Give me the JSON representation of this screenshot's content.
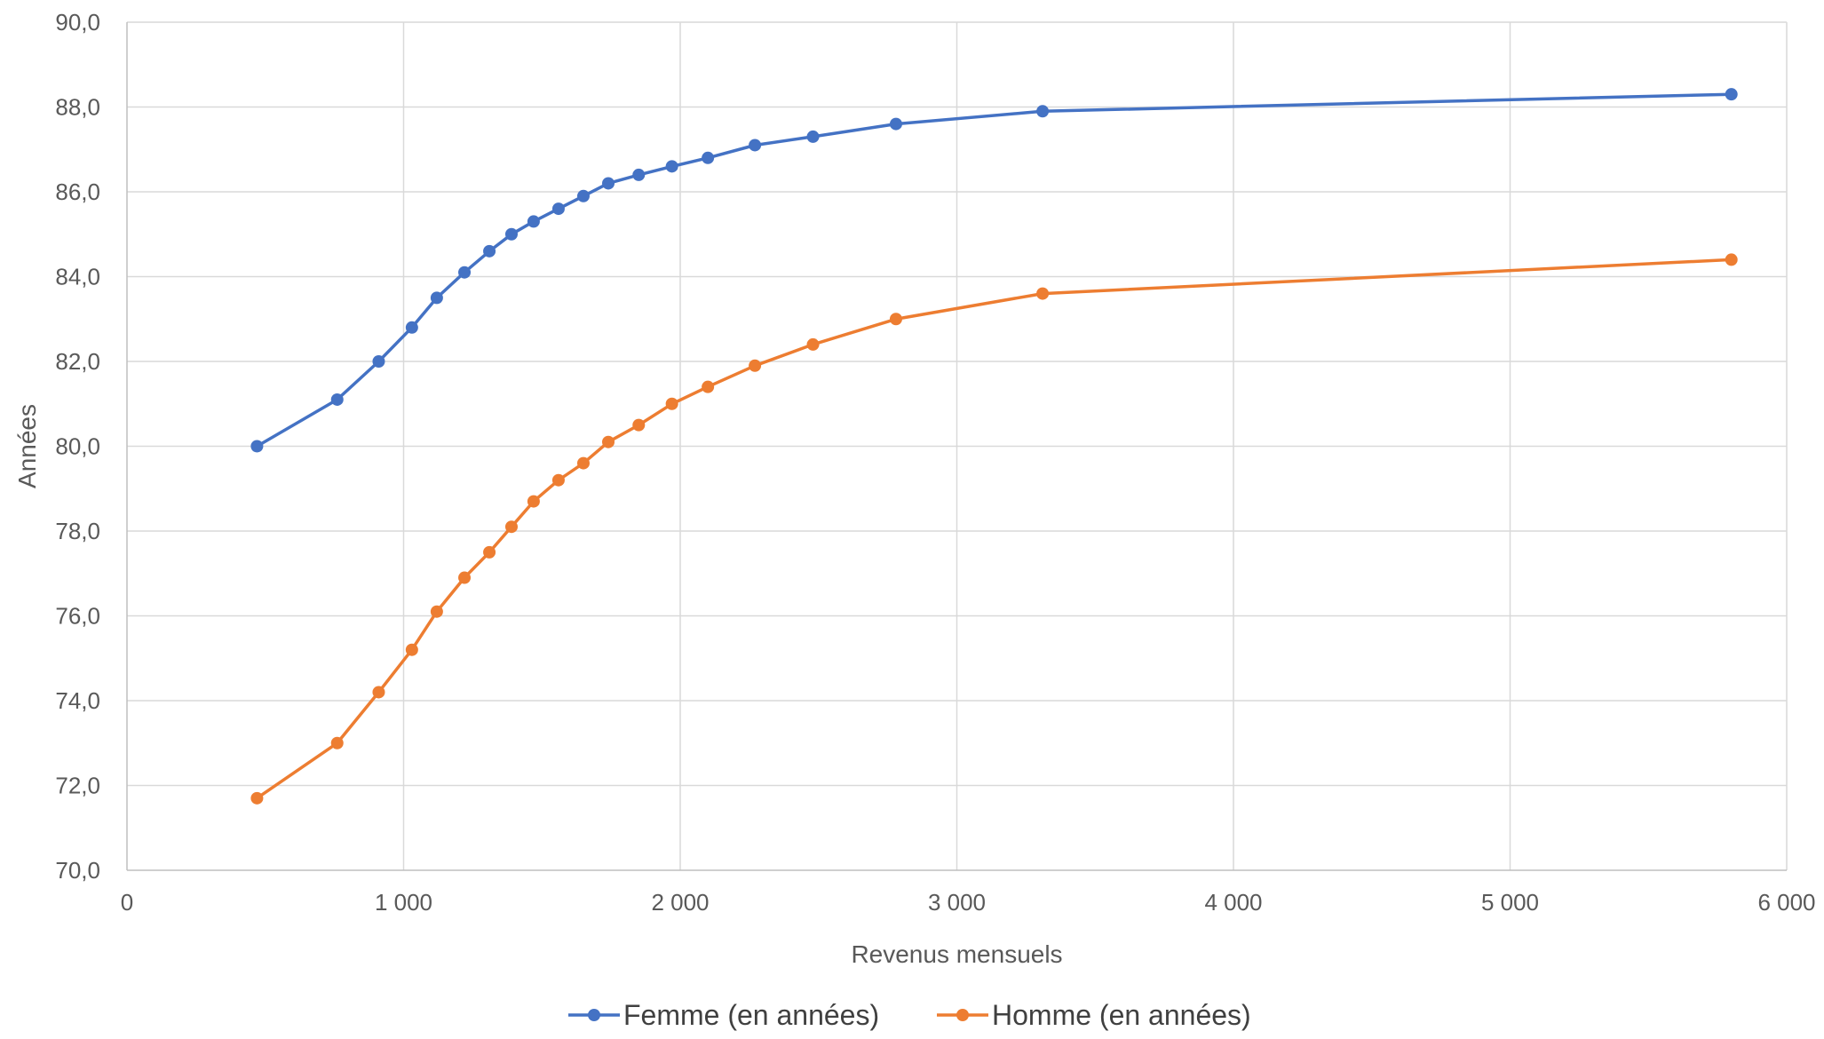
{
  "chart_data": {
    "type": "line",
    "title": "",
    "xlabel": "Revenus mensuels",
    "ylabel": "Années",
    "xlim": [
      0,
      6000
    ],
    "ylim": [
      70,
      90
    ],
    "x_ticks": [
      0,
      1000,
      2000,
      3000,
      4000,
      5000,
      6000
    ],
    "x_tick_labels": [
      "0",
      "1 000",
      "2 000",
      "3 000",
      "4 000",
      "5 000",
      "6 000"
    ],
    "y_ticks": [
      70,
      72,
      74,
      76,
      78,
      80,
      82,
      84,
      86,
      88,
      90
    ],
    "y_tick_labels": [
      "70,0",
      "72,0",
      "74,0",
      "76,0",
      "78,0",
      "80,0",
      "82,0",
      "84,0",
      "86,0",
      "88,0",
      "90,0"
    ],
    "grid": true,
    "legend_position": "bottom",
    "series": [
      {
        "name": "Femme (en années)",
        "color": "#4472C4",
        "points": [
          [
            470,
            80.0
          ],
          [
            760,
            81.1
          ],
          [
            910,
            82.0
          ],
          [
            1030,
            82.8
          ],
          [
            1120,
            83.5
          ],
          [
            1220,
            84.1
          ],
          [
            1310,
            84.6
          ],
          [
            1390,
            85.0
          ],
          [
            1470,
            85.3
          ],
          [
            1560,
            85.6
          ],
          [
            1650,
            85.9
          ],
          [
            1740,
            86.2
          ],
          [
            1850,
            86.4
          ],
          [
            1970,
            86.6
          ],
          [
            2100,
            86.8
          ],
          [
            2270,
            87.1
          ],
          [
            2480,
            87.3
          ],
          [
            2780,
            87.6
          ],
          [
            3310,
            87.9
          ],
          [
            5800,
            88.3
          ]
        ]
      },
      {
        "name": "Homme (en années)",
        "color": "#ED7D31",
        "points": [
          [
            470,
            71.7
          ],
          [
            760,
            73.0
          ],
          [
            910,
            74.2
          ],
          [
            1030,
            75.2
          ],
          [
            1120,
            76.1
          ],
          [
            1220,
            76.9
          ],
          [
            1310,
            77.5
          ],
          [
            1390,
            78.1
          ],
          [
            1470,
            78.7
          ],
          [
            1560,
            79.2
          ],
          [
            1650,
            79.6
          ],
          [
            1740,
            80.1
          ],
          [
            1850,
            80.5
          ],
          [
            1970,
            81.0
          ],
          [
            2100,
            81.4
          ],
          [
            2270,
            81.9
          ],
          [
            2480,
            82.4
          ],
          [
            2780,
            83.0
          ],
          [
            3310,
            83.6
          ],
          [
            5800,
            84.4
          ]
        ]
      }
    ]
  }
}
